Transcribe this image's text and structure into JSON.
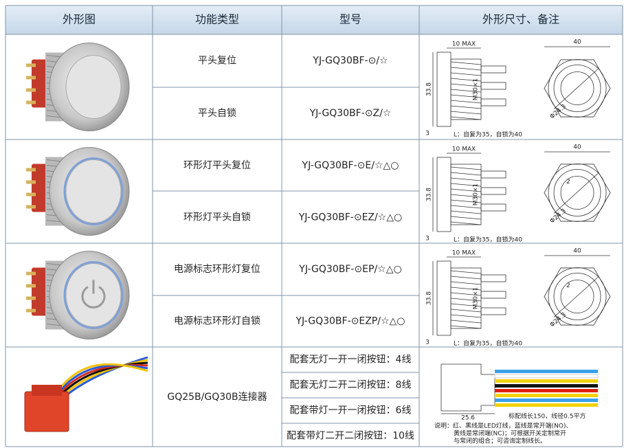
{
  "header": [
    "外形图",
    "功能类型",
    "型号",
    "外形尺寸、备注"
  ],
  "groups": [
    {
      "rows": [
        {
          "function": "平头复位",
          "model": "YJ-GQ30BF-⊙/☆"
        },
        {
          "function": "平头自锁",
          "model": "YJ-GQ30BF-⊙Z/☆"
        }
      ],
      "drawing": {
        "top": "10 MAX",
        "height": "33.8",
        "thread": "M30×1",
        "base": "3",
        "note": "L：自复为35，自锁为40",
        "width": "40",
        "dia": "Φ24.3"
      }
    },
    {
      "rows": [
        {
          "function": "环形灯平头复位",
          "model": "YJ-GQ30BF-⊙E/☆△○"
        },
        {
          "function": "环形灯平头自锁",
          "model": "YJ-GQ30BF-⊙EZ/☆△○"
        }
      ],
      "drawing": {
        "top": "10 MAX",
        "height": "33.8",
        "thread": "M30×1",
        "base": "3",
        "note": "L：自复为35，自锁为40",
        "width": "40",
        "dia": "Φ24.3",
        "ring": "2"
      }
    },
    {
      "rows": [
        {
          "function": "电源标志环形灯复位",
          "model": "YJ-GQ30BF-⊙EP/☆△○"
        },
        {
          "function": "电源标志环形灯自锁",
          "model": "YJ-GQ30BF-⊙EZP/☆△○"
        }
      ],
      "drawing": {
        "top": "10 MAX",
        "height": "33.8",
        "thread": "M30×1",
        "base": "3",
        "note": "L：自复为35，自锁为40",
        "width": "40",
        "dia": "Φ24.3",
        "ring": "2"
      }
    },
    {
      "function": "GQ25B/GQ30B连接器",
      "rows": [
        "配套无灯一开一闭按钮：4线",
        "配套无灯二开二闭按钮：8线",
        "配套带灯一开一闭按钮：6线",
        "配套带灯二开二闭按钮：10线"
      ],
      "drawing": {
        "length": "25.6",
        "wire": "标配线长150，线径0.5平方",
        "note": [
          "说明：红、黑线是LED灯线，蓝线是常开端(NO)、",
          "黄线是常闭端(NC)；可根据开关定制常开",
          "与常闭的组合；可咨询定制线长。"
        ]
      }
    }
  ]
}
